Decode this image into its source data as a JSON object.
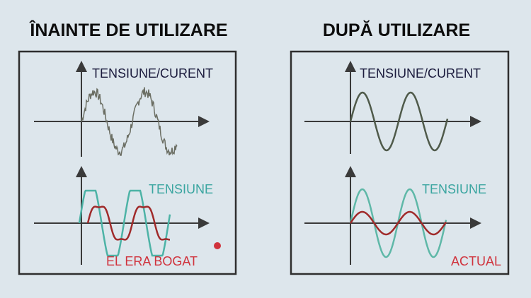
{
  "panels": [
    {
      "title": "ÎNAINTE DE UTILIZARE",
      "top_label": "TENSIUNE/CURENT",
      "voltage_label": "TENSIUNE",
      "current_label": "EL ERA BOGAT"
    },
    {
      "title": "DUPĂ UTILIZARE",
      "top_label": "TENSIUNE/CURENT",
      "voltage_label": "TENSIUNE",
      "current_label": "ACTUAL"
    }
  ]
}
